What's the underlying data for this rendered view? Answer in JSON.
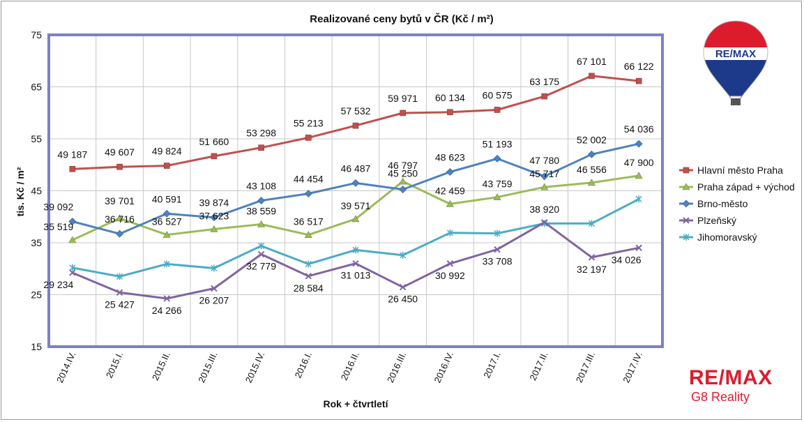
{
  "brand": {
    "balloon_text": "RE/MAX",
    "logo_main": "RE/MAX",
    "logo_sub": "G8 Reality",
    "colors": {
      "red": "#dc1c2e",
      "blue": "#1d3a8a"
    }
  },
  "chart_data": {
    "type": "line",
    "title": "Realizované ceny bytů v ČR (Kč / m²)",
    "xlabel": "Rok + čtvrtletí",
    "ylabel": "tis. Kč / m²",
    "ylim": [
      15,
      75
    ],
    "yticks": [
      "15",
      "25",
      "35",
      "45",
      "55",
      "65",
      "75"
    ],
    "grid": true,
    "legend_position": "right",
    "categories": [
      "2014.IV.",
      "2015.I.",
      "2015.II.",
      "2015.III.",
      "2015.IV.",
      "2016.I.",
      "2016.II.",
      "2016.III.",
      "2016.IV.",
      "2017.I.",
      "2017.II.",
      "2017.III.",
      "2017.IV."
    ],
    "series": [
      {
        "name": "Hlavní město Praha",
        "color": "#c0504d",
        "marker": "square",
        "values": [
          49.187,
          49.607,
          49.824,
          51.66,
          53.298,
          55.213,
          57.532,
          59.971,
          60.134,
          60.575,
          63.175,
          67.101,
          66.122
        ],
        "labels": [
          "49 187",
          "49 607",
          "49 824",
          "51 660",
          "53 298",
          "55 213",
          "57 532",
          "59 971",
          "60 134",
          "60 575",
          "63 175",
          "67 101",
          "66 122"
        ]
      },
      {
        "name": "Praha západ + východ",
        "color": "#9bbb59",
        "marker": "triangle",
        "values": [
          35.519,
          39.701,
          36.527,
          37.623,
          38.559,
          36.517,
          39.571,
          46.797,
          42.459,
          43.759,
          45.717,
          46.556,
          47.9
        ],
        "labels": [
          "35 519",
          "39 701",
          "36 527",
          "37 623",
          "38 559",
          "36 517",
          "39 571",
          "46 797",
          "42 459",
          "43 759",
          "45 717",
          "46 556",
          "47 900"
        ]
      },
      {
        "name": "Brno-město",
        "color": "#4f81bd",
        "marker": "diamond",
        "values": [
          39.092,
          36.716,
          40.591,
          39.874,
          43.108,
          44.454,
          46.487,
          45.25,
          48.623,
          51.193,
          47.78,
          52.002,
          54.036
        ],
        "labels": [
          "39 092",
          "36 716",
          "40 591",
          "39 874",
          "43 108",
          "44 454",
          "46 487",
          "45 250",
          "48 623",
          "51 193",
          "47 780",
          "52 002",
          "54 036"
        ]
      },
      {
        "name": "Plzeňský",
        "color": "#8064a2",
        "marker": "x",
        "values": [
          29.234,
          25.427,
          24.266,
          26.207,
          32.779,
          28.584,
          31.013,
          26.45,
          30.992,
          33.708,
          38.92,
          32.197,
          34.026
        ],
        "labels": [
          "29 234",
          "25 427",
          "24 266",
          "26 207",
          "32 779",
          "28 584",
          "31 013",
          "26 450",
          "30 992",
          "33 708",
          "38 920",
          "32 197",
          "34 026"
        ]
      },
      {
        "name": "Jihomoravský",
        "color": "#4bacc6",
        "marker": "star",
        "values": [
          30.2,
          28.5,
          30.9,
          30.1,
          34.4,
          30.9,
          33.6,
          32.6,
          36.9,
          36.8,
          38.7,
          38.7,
          43.4
        ],
        "labels": []
      }
    ]
  }
}
